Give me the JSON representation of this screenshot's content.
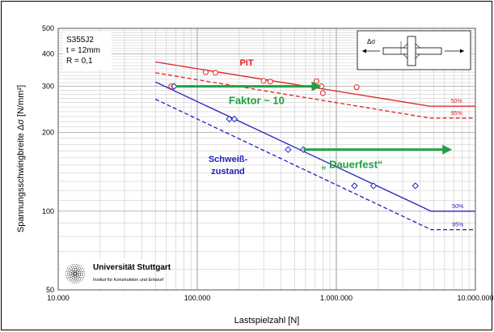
{
  "chart_data": {
    "type": "scatter",
    "x_scale": "log",
    "y_scale": "log",
    "xlabel": "Lastspielzahl [N]",
    "ylabel": "Spannungsschwingbreite Δσ  [N/mm²]",
    "xlim": [
      10000,
      10000000
    ],
    "ylim": [
      50,
      500
    ],
    "x_ticks": [
      {
        "value": 10000,
        "label": "10.000"
      },
      {
        "value": 100000,
        "label": "100.000"
      },
      {
        "value": 1000000,
        "label": "1.000.000"
      },
      {
        "value": 10000000,
        "label": "10.000.000"
      }
    ],
    "y_ticks": [
      {
        "value": 50,
        "label": "50"
      },
      {
        "value": 100,
        "label": "100"
      },
      {
        "value": 200,
        "label": "200"
      },
      {
        "value": 300,
        "label": "300"
      },
      {
        "value": 400,
        "label": "400"
      },
      {
        "value": 500,
        "label": "500"
      }
    ],
    "grid": true,
    "info_box": [
      "S355J2",
      "t = 12mm",
      "R = 0,1"
    ],
    "symbol": "Δσ",
    "series": [
      {
        "name": "PIT",
        "color": "#e02020",
        "marker": "circle",
        "points": [
          [
            65000,
            300
          ],
          [
            115000,
            340
          ],
          [
            135000,
            338
          ],
          [
            300000,
            315
          ],
          [
            335000,
            313
          ],
          [
            720000,
            314
          ],
          [
            780000,
            300
          ],
          [
            800000,
            283
          ],
          [
            1400000,
            298
          ]
        ],
        "lines": [
          {
            "label": "50%",
            "dash": false,
            "points": [
              [
                50000,
                372
              ],
              [
                4700000,
                252
              ],
              [
                10000000,
                252
              ]
            ]
          },
          {
            "label": "95%",
            "dash": true,
            "points": [
              [
                50000,
                338
              ],
              [
                4700000,
                227
              ],
              [
                10000000,
                227
              ]
            ]
          }
        ]
      },
      {
        "name": "Schweiß-\nzustand",
        "color": "#2020c0",
        "marker": "diamond",
        "points": [
          [
            68000,
            300
          ],
          [
            170000,
            225
          ],
          [
            185000,
            225
          ],
          [
            450000,
            172
          ],
          [
            580000,
            172
          ],
          [
            1350000,
            125
          ],
          [
            1850000,
            125
          ],
          [
            3700000,
            125
          ]
        ],
        "lines": [
          {
            "label": "50%",
            "dash": false,
            "points": [
              [
                50000,
                312
              ],
              [
                4800000,
                100
              ],
              [
                10000000,
                100
              ]
            ]
          },
          {
            "label": "95%",
            "dash": true,
            "points": [
              [
                50000,
                268
              ],
              [
                4800000,
                85
              ],
              [
                10000000,
                85
              ]
            ]
          }
        ]
      }
    ],
    "annotations": [
      {
        "text": "Faktor ~ 10",
        "color": "#20a040",
        "x_from": 70000,
        "x_to": 780000,
        "y": 300
      },
      {
        "text": "„ Dauerfest“",
        "color": "#20a040",
        "x_from": 580000,
        "x_to": 6800000,
        "y": 172
      }
    ],
    "logo": {
      "title": "Universität Stuttgart",
      "subtitle": "Institut für Konstruktion und Entwurf"
    }
  }
}
